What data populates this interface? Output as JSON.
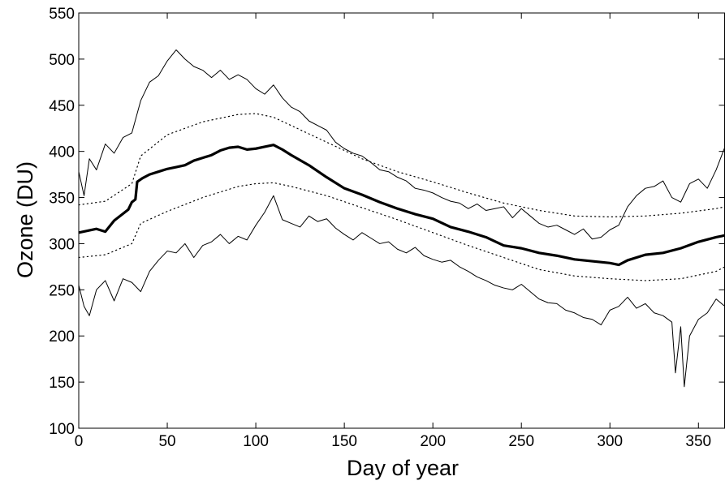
{
  "chart_data": {
    "type": "line",
    "title": "",
    "xlabel": "Day of year",
    "ylabel": "Ozone (DU)",
    "xlim": [
      0,
      365
    ],
    "ylim": [
      100,
      550
    ],
    "x_ticks": [
      0,
      50,
      100,
      150,
      200,
      250,
      300,
      350
    ],
    "y_ticks": [
      100,
      150,
      200,
      250,
      300,
      350,
      400,
      450,
      500,
      550
    ],
    "x_tick_labels": [
      "0",
      "50",
      "100",
      "150",
      "200",
      "250",
      "300",
      "350"
    ],
    "y_tick_labels": [
      "100",
      "150",
      "200",
      "250",
      "300",
      "350",
      "400",
      "450",
      "500",
      "550"
    ],
    "grid": false,
    "legend": "none",
    "series": [
      {
        "role": "mean",
        "style": "thick-solid",
        "color": "#000000",
        "x": [
          0,
          10,
          15,
          20,
          28,
          30,
          32,
          33,
          36,
          40,
          45,
          50,
          55,
          60,
          65,
          70,
          75,
          80,
          85,
          90,
          95,
          100,
          105,
          110,
          115,
          120,
          130,
          140,
          150,
          160,
          170,
          180,
          190,
          200,
          210,
          220,
          230,
          240,
          250,
          260,
          270,
          280,
          290,
          300,
          305,
          310,
          320,
          330,
          340,
          350,
          360,
          365
        ],
        "y": [
          312,
          316,
          313,
          325,
          337,
          345,
          348,
          367,
          371,
          375,
          378,
          381,
          383,
          385,
          390,
          393,
          396,
          401,
          404,
          405,
          402,
          403,
          405,
          407,
          402,
          396,
          385,
          372,
          360,
          353,
          345,
          338,
          332,
          327,
          318,
          313,
          307,
          298,
          295,
          290,
          287,
          283,
          281,
          279,
          277,
          282,
          288,
          290,
          295,
          302,
          307,
          309
        ]
      },
      {
        "role": "upper-dotted",
        "style": "dotted",
        "color": "#000000",
        "x": [
          0,
          15,
          30,
          35,
          50,
          70,
          90,
          100,
          110,
          120,
          140,
          160,
          180,
          200,
          220,
          240,
          260,
          280,
          300,
          320,
          340,
          360,
          365
        ],
        "y": [
          342,
          346,
          365,
          395,
          418,
          432,
          440,
          441,
          437,
          428,
          410,
          392,
          378,
          367,
          355,
          344,
          336,
          330,
          329,
          330,
          333,
          338,
          340
        ]
      },
      {
        "role": "lower-dotted",
        "style": "dotted",
        "color": "#000000",
        "x": [
          0,
          15,
          30,
          35,
          50,
          70,
          90,
          100,
          110,
          120,
          140,
          160,
          180,
          200,
          220,
          240,
          260,
          280,
          300,
          320,
          340,
          360,
          365
        ],
        "y": [
          285,
          288,
          300,
          322,
          335,
          350,
          362,
          365,
          366,
          362,
          352,
          339,
          326,
          312,
          298,
          285,
          272,
          265,
          262,
          260,
          262,
          270,
          275
        ]
      },
      {
        "role": "upper-thin",
        "style": "thin-solid",
        "color": "#000000",
        "x": [
          0,
          3,
          6,
          10,
          15,
          20,
          25,
          30,
          35,
          40,
          45,
          50,
          55,
          60,
          65,
          70,
          75,
          80,
          85,
          90,
          95,
          100,
          105,
          110,
          115,
          120,
          125,
          130,
          135,
          140,
          145,
          150,
          155,
          160,
          165,
          170,
          175,
          180,
          185,
          190,
          195,
          200,
          205,
          210,
          215,
          220,
          225,
          230,
          235,
          240,
          245,
          250,
          255,
          260,
          265,
          270,
          275,
          280,
          285,
          290,
          295,
          300,
          305,
          310,
          315,
          320,
          325,
          330,
          335,
          340,
          345,
          350,
          355,
          360,
          365
        ],
        "y": [
          378,
          352,
          392,
          380,
          408,
          398,
          415,
          420,
          455,
          475,
          482,
          498,
          510,
          500,
          492,
          488,
          480,
          488,
          478,
          483,
          478,
          468,
          462,
          472,
          458,
          448,
          443,
          433,
          428,
          423,
          410,
          403,
          398,
          395,
          388,
          380,
          378,
          372,
          368,
          360,
          358,
          355,
          350,
          346,
          344,
          338,
          343,
          336,
          338,
          340,
          328,
          338,
          330,
          322,
          318,
          320,
          315,
          310,
          316,
          305,
          307,
          315,
          320,
          340,
          352,
          360,
          362,
          368,
          350,
          345,
          365,
          370,
          360,
          380,
          405
        ]
      },
      {
        "role": "lower-thin",
        "style": "thin-solid",
        "color": "#000000",
        "x": [
          0,
          3,
          6,
          10,
          15,
          20,
          25,
          30,
          35,
          40,
          45,
          50,
          55,
          60,
          65,
          70,
          75,
          80,
          85,
          90,
          95,
          100,
          105,
          110,
          115,
          120,
          125,
          130,
          135,
          140,
          145,
          150,
          155,
          160,
          165,
          170,
          175,
          180,
          185,
          190,
          195,
          200,
          205,
          210,
          215,
          220,
          225,
          230,
          235,
          240,
          245,
          250,
          255,
          260,
          265,
          270,
          275,
          280,
          285,
          290,
          295,
          300,
          305,
          310,
          315,
          320,
          325,
          330,
          335,
          337,
          340,
          342,
          345,
          350,
          355,
          360,
          365
        ],
        "y": [
          255,
          232,
          222,
          250,
          260,
          238,
          262,
          258,
          248,
          270,
          282,
          292,
          290,
          300,
          285,
          298,
          302,
          310,
          300,
          308,
          304,
          320,
          334,
          352,
          326,
          322,
          318,
          330,
          324,
          327,
          317,
          310,
          304,
          312,
          306,
          300,
          302,
          294,
          290,
          296,
          287,
          283,
          280,
          282,
          275,
          270,
          264,
          260,
          255,
          252,
          250,
          256,
          248,
          240,
          236,
          235,
          228,
          225,
          220,
          218,
          212,
          228,
          232,
          242,
          230,
          235,
          225,
          222,
          215,
          160,
          210,
          145,
          200,
          218,
          225,
          240,
          232
        ]
      }
    ]
  }
}
